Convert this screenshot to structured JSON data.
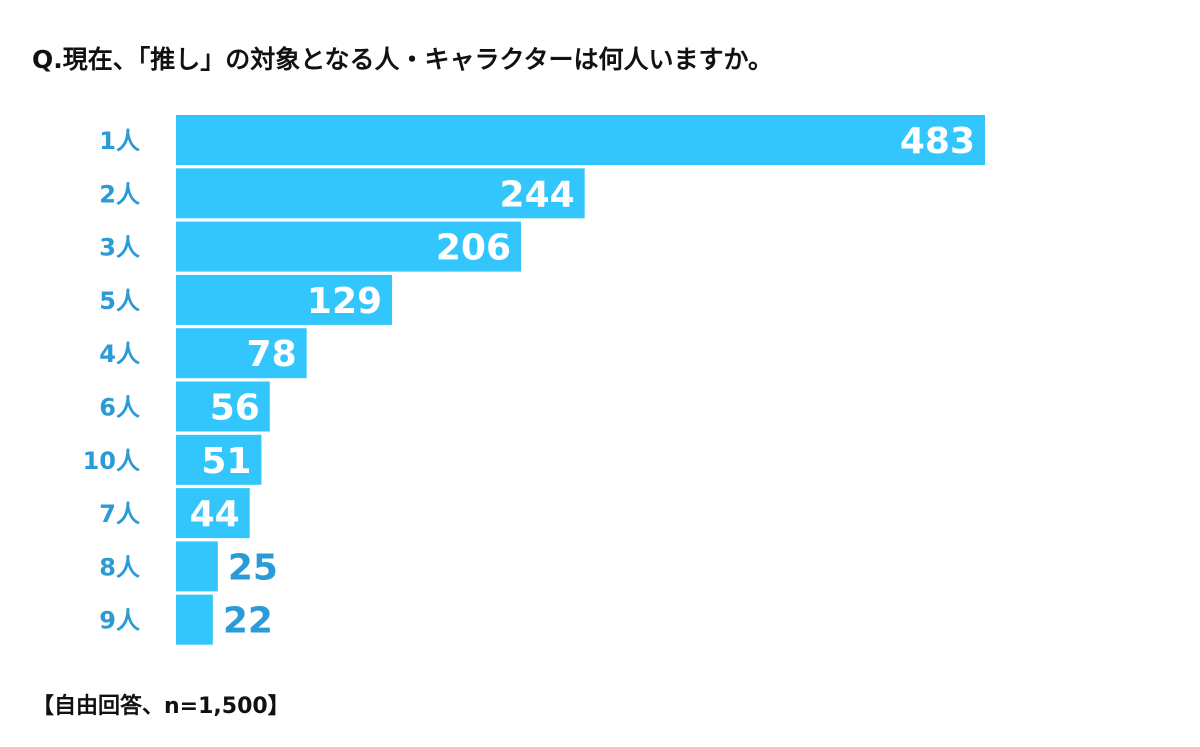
{
  "chart_data": {
    "type": "bar",
    "orientation": "horizontal",
    "title": "Q.現在、「推し」の対象となる人・キャラクターは何人いますか。",
    "note": "【自由回答、n=1,500】",
    "categories": [
      "1人",
      "2人",
      "3人",
      "5人",
      "4人",
      "6人",
      "10人",
      "7人",
      "8人",
      "9人"
    ],
    "values": [
      483,
      244,
      206,
      129,
      78,
      56,
      51,
      44,
      25,
      22
    ],
    "xlim": [
      0,
      483
    ],
    "grid": false,
    "colors": {
      "bar": "#33C6FC",
      "category_label": "#2A9BD6",
      "value_inside": "#FFFFFF",
      "value_outside": "#2A9BD6"
    }
  }
}
